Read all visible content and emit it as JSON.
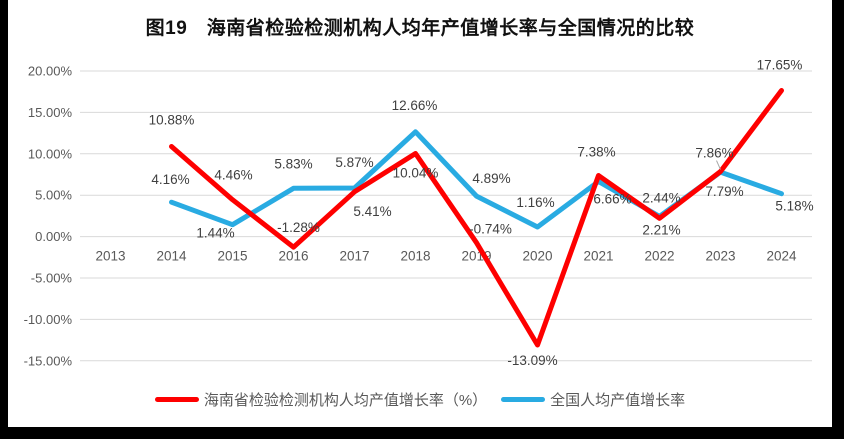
{
  "title": "图19　海南省检验检测机构人均年产值增长率与全国情况的比较",
  "colors": {
    "hainan_series": "#FE0000",
    "national_series": "#29ABE2",
    "gridline": "#D9D9D9",
    "axis_text": "#595959",
    "data_label_text": "#404040",
    "frame_bars": "#000000",
    "background": "#FFFFFF"
  },
  "chart_data": {
    "type": "line",
    "title": "图19　海南省检验检测机构人均年产值增长率与全国情况的比较",
    "categories": [
      "2013",
      "2014",
      "2015",
      "2016",
      "2017",
      "2018",
      "2019",
      "2020",
      "2021",
      "2022",
      "2023",
      "2024"
    ],
    "series": [
      {
        "name": "海南省检验检测机构人均产值增长率（%）",
        "color": "#FE0000",
        "values": [
          null,
          10.88,
          4.46,
          -1.28,
          5.41,
          10.04,
          -0.74,
          -13.09,
          7.38,
          2.21,
          7.86,
          17.65
        ]
      },
      {
        "name": "全国人均产值增长率",
        "color": "#29ABE2",
        "values": [
          null,
          4.16,
          1.44,
          5.83,
          5.87,
          12.66,
          4.89,
          1.16,
          6.66,
          2.44,
          7.79,
          5.18
        ]
      }
    ],
    "xlabel": "",
    "ylabel": "",
    "ylim": [
      -15,
      20
    ],
    "ytick_step": 5,
    "ytick_labels": [
      "20.00%",
      "15.00%",
      "10.00%",
      "5.00%",
      "0.00%",
      "-5.00%",
      "-10.00%",
      "-15.00%"
    ],
    "data_label_format": "0.00%",
    "grid": true,
    "legend_position": "bottom"
  }
}
